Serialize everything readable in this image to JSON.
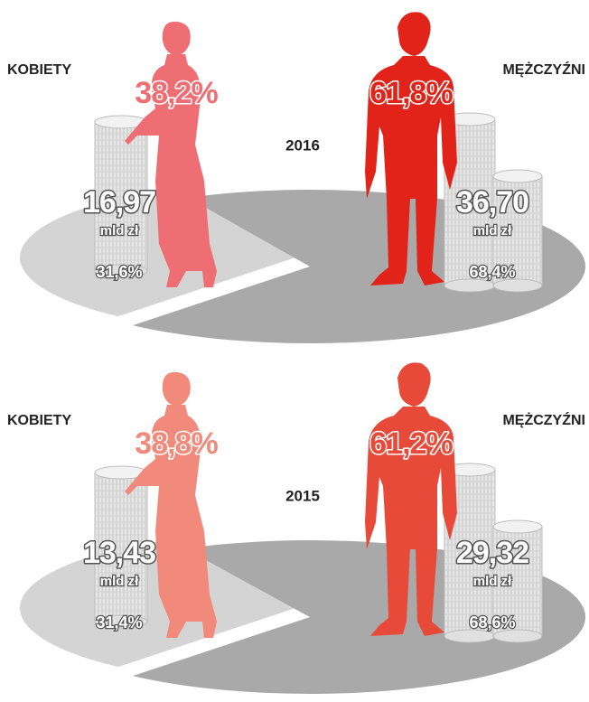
{
  "chart_data": [
    {
      "type": "pie",
      "title": "2016",
      "categories": [
        "KOBIETY",
        "MĘŻCZYŹNI"
      ],
      "values": [
        31.6,
        68.4
      ],
      "value_labels": [
        "31,6%",
        "68,4%"
      ],
      "colors": [
        "#d4d4d4",
        "#a9a9a9"
      ],
      "figure_colors": [
        "#ee6e74",
        "#e2231a"
      ],
      "people_labels": [
        "38,2%",
        "61,8%"
      ],
      "amount_labels": [
        "16,97",
        "36,70"
      ],
      "unit": "mld zł"
    },
    {
      "type": "pie",
      "title": "2015",
      "categories": [
        "KOBIETY",
        "MĘŻCZYŹNI"
      ],
      "values": [
        31.4,
        68.6
      ],
      "value_labels": [
        "31,4%",
        "68,6%"
      ],
      "colors": [
        "#d4d4d4",
        "#a9a9a9"
      ],
      "figure_colors": [
        "#f28a7b",
        "#e84a3a"
      ],
      "people_labels": [
        "38,8%",
        "61,2%"
      ],
      "amount_labels": [
        "13,43",
        "29,32"
      ],
      "unit": "mld zł"
    }
  ]
}
